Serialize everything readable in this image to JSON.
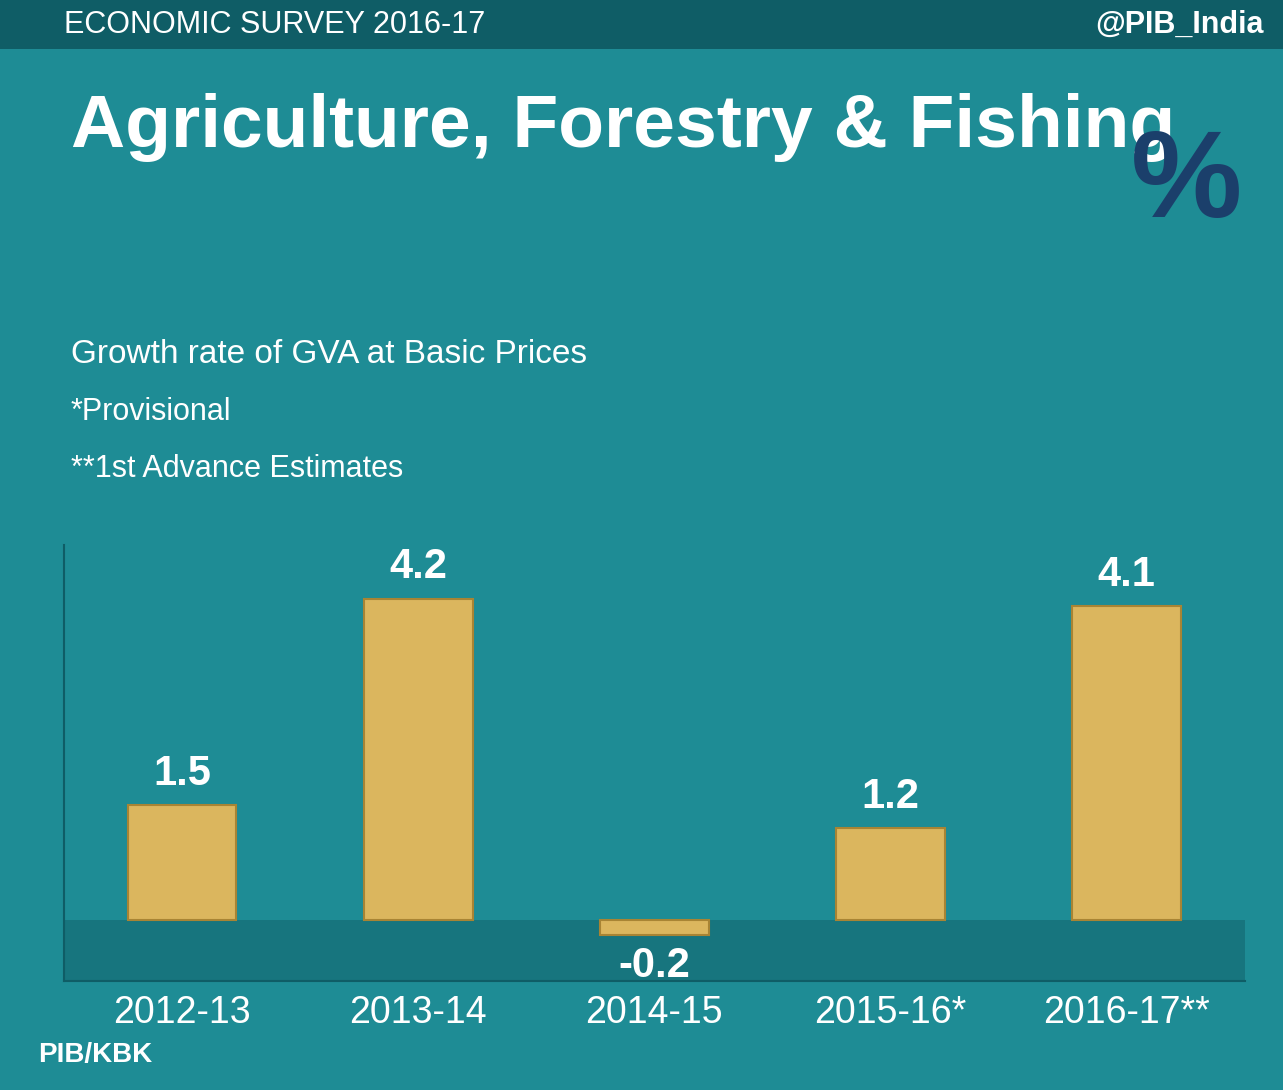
{
  "header": {
    "left": "ECONOMIC SURVEY 2016-17",
    "right": "@PIB_India"
  },
  "symbol": "%",
  "credit": "PIB/KBK",
  "chart_data": {
    "type": "bar",
    "title": "Agriculture, Forestry & Fishing",
    "subtitle": "Growth rate of GVA at Basic Prices",
    "notes": [
      "*Provisional",
      "**1st Advance Estimates"
    ],
    "categories": [
      "2012-13",
      "2013-14",
      "2014-15",
      "2015-16*",
      "2016-17**"
    ],
    "values": [
      1.5,
      4.2,
      -0.2,
      1.2,
      4.1
    ],
    "color": "#dbb65e",
    "ylim": [
      -0.8,
      4.9
    ],
    "yticks": [],
    "data_labels": true,
    "tick_labels": "x",
    "grid": false
  }
}
